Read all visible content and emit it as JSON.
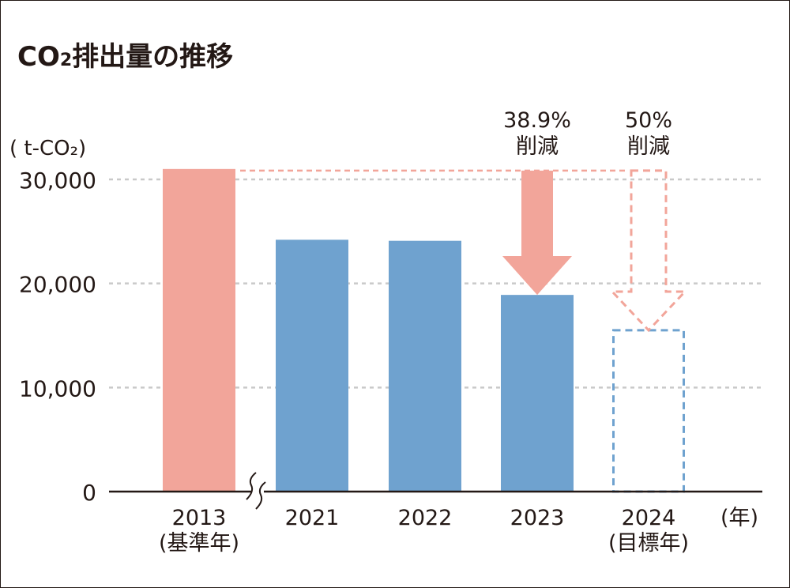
{
  "title": {
    "prefix": "CO",
    "subscript": "2",
    "suffix": "排出量の推移"
  },
  "colors": {
    "base_bar": "#f2a59a",
    "actual_bar": "#6fa2cf",
    "target_outline": "#6fa2cf",
    "arrow": "#f2a59a",
    "grid": "#c9c9c9",
    "text": "#231815"
  },
  "chart_data": {
    "type": "bar",
    "unit_label": "( t-CO₂)",
    "x_unit_label": "(年)",
    "categories": [
      "2013\n(基準年)",
      "2021",
      "2022",
      "2023",
      "2024\n(目標年)"
    ],
    "category_lines": [
      [
        "2013",
        "(基準年)"
      ],
      [
        "2021"
      ],
      [
        "2022"
      ],
      [
        "2023"
      ],
      [
        "2024",
        "(目標年)"
      ]
    ],
    "values": [
      31000,
      24200,
      24100,
      18900,
      15500
    ],
    "bar_styles": [
      "base",
      "actual",
      "actual",
      "actual",
      "target"
    ],
    "ylim": [
      0,
      30000
    ],
    "yticks": [
      0,
      10000,
      20000,
      30000
    ],
    "ytick_labels": [
      "0",
      "10,000",
      "20,000",
      "30,000"
    ],
    "grid": true,
    "axis_break_between": [
      0,
      1
    ],
    "annotations": [
      {
        "category_index": 3,
        "lines": [
          "38.9%",
          "削減"
        ],
        "style": "solid-arrow"
      },
      {
        "category_index": 4,
        "lines": [
          "50%",
          "削減"
        ],
        "style": "dashed-arrow"
      }
    ]
  }
}
